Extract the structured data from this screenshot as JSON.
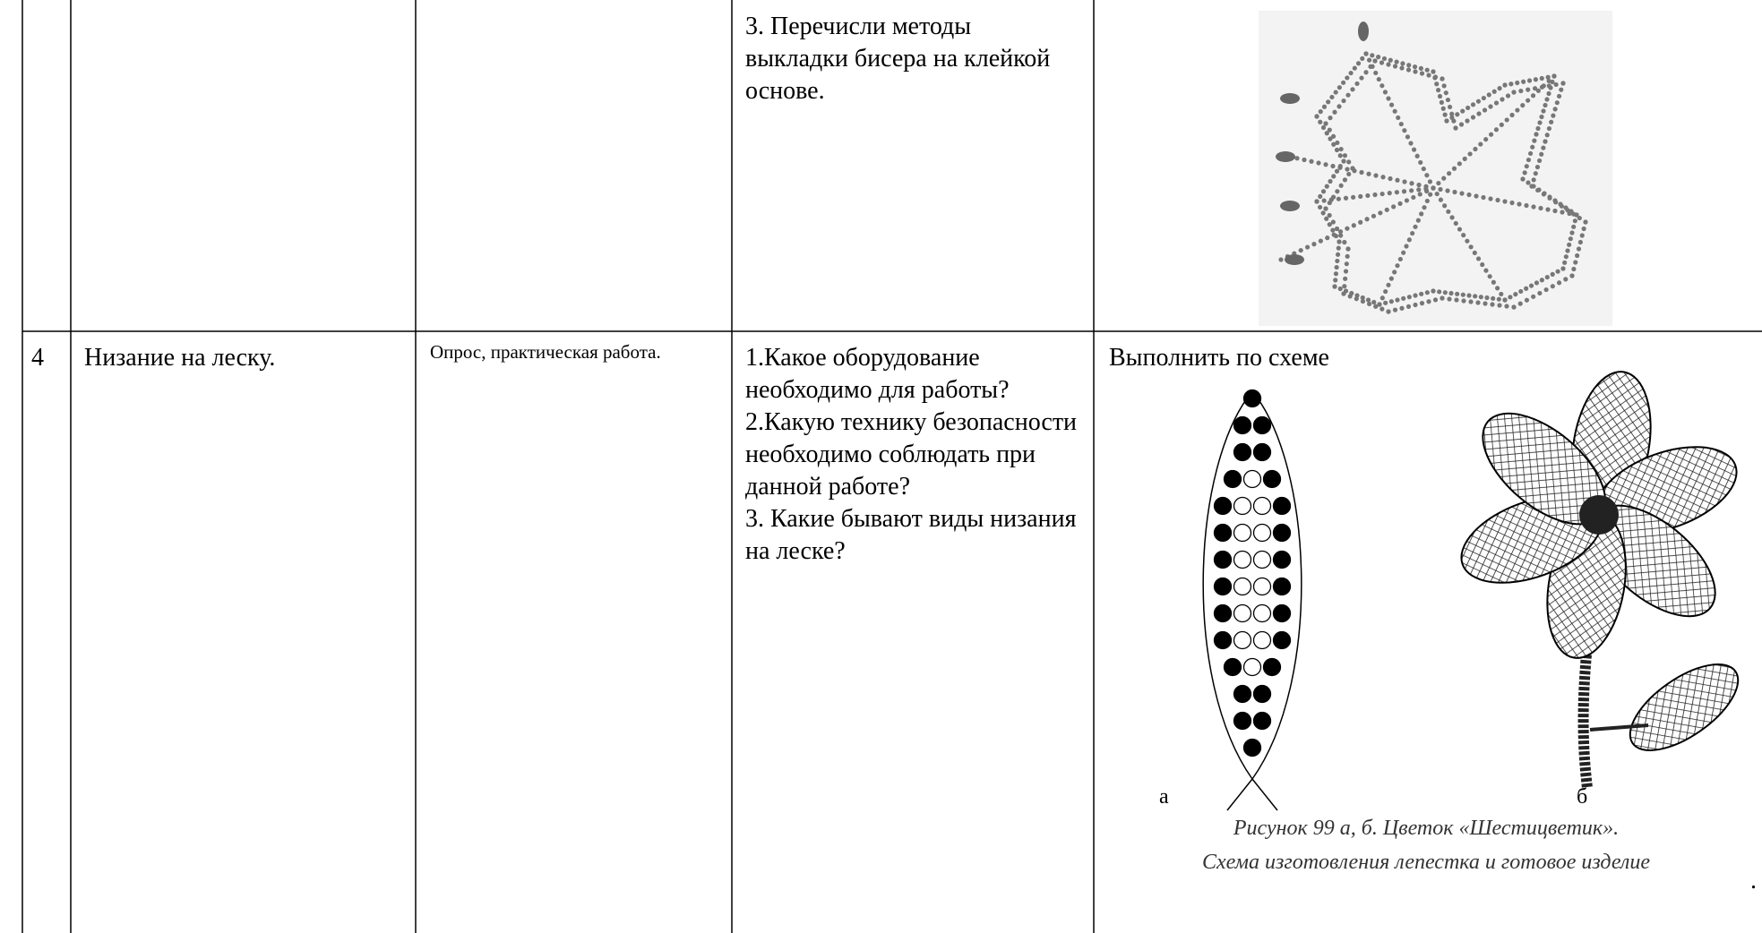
{
  "table": {
    "rows": [
      {
        "questions": [
          "3. Перечисли методы выкладки бисера на клейкой основе."
        ]
      },
      {
        "number": 4,
        "topic": "Низание на леску.",
        "form": "Опрос, практическая работа.",
        "questions": [
          "1.Какое оборудование необходимо для работы?",
          "2.Какую технику безопасности необходимо соблюдать при данной работе?",
          "3. Какие бывают виды низания на леске?"
        ],
        "task": "Выполнить по схеме",
        "figure": {
          "label_a": "а",
          "label_b": "б",
          "caption": [
            "Рисунок 99 а, б. Цветок «Шестицветик».",
            "Схема изготовления лепестка и готовое изделие"
          ]
        },
        "trailing": "."
      }
    ]
  }
}
